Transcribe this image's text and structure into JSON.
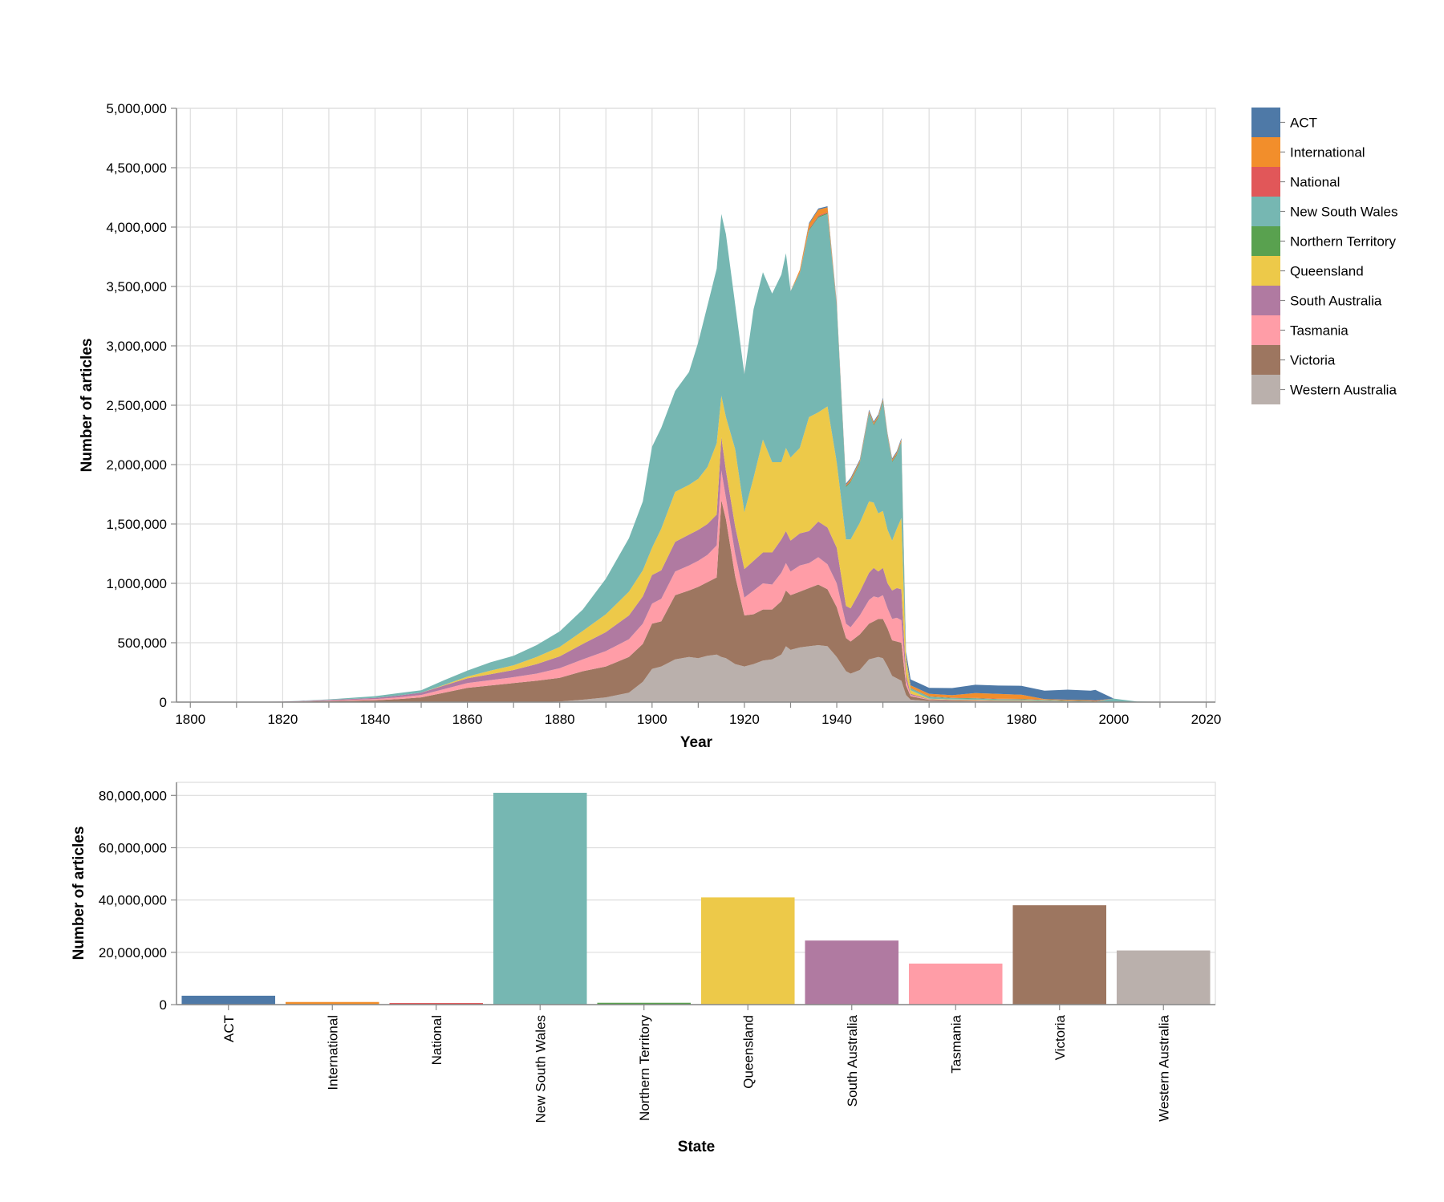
{
  "chart_data": [
    {
      "type": "area",
      "stacked": true,
      "xlabel": "Year",
      "ylabel": "Number of articles",
      "xlim": [
        1797,
        2022
      ],
      "ylim": [
        0,
        5000000
      ],
      "x_ticks": [
        1800,
        1820,
        1840,
        1860,
        1880,
        1900,
        1920,
        1940,
        1960,
        1980,
        2000,
        2020
      ],
      "x_tick_labels": [
        "1800",
        "1820",
        "1840",
        "1860",
        "1880",
        "1900",
        "1920",
        "1940",
        "1960",
        "1980",
        "2000",
        "2020"
      ],
      "y_ticks": [
        0,
        500000,
        1000000,
        1500000,
        2000000,
        2500000,
        3000000,
        3500000,
        4000000,
        4500000,
        5000000
      ],
      "y_tick_labels": [
        "0",
        "500,000",
        "1,000,000",
        "1,500,000",
        "2,000,000",
        "2,500,000",
        "3,000,000",
        "3,500,000",
        "4,000,000",
        "4,500,000",
        "5,000,000"
      ],
      "grid": true,
      "legend_position": "right",
      "x": [
        1803,
        1820,
        1830,
        1840,
        1845,
        1850,
        1855,
        1860,
        1865,
        1870,
        1875,
        1880,
        1885,
        1890,
        1895,
        1898,
        1900,
        1902,
        1905,
        1908,
        1910,
        1912,
        1914,
        1915,
        1916,
        1918,
        1920,
        1922,
        1924,
        1926,
        1928,
        1929,
        1930,
        1932,
        1934,
        1936,
        1938,
        1940,
        1942,
        1943,
        1945,
        1947,
        1948,
        1949,
        1950,
        1951,
        1952,
        1953,
        1954,
        1955,
        1956,
        1960,
        1965,
        1970,
        1975,
        1980,
        1985,
        1990,
        1995,
        1996,
        2000,
        2005,
        2010,
        2015,
        2020
      ],
      "series": [
        {
          "name": "Western Australia",
          "color": "#bab0ac",
          "values": [
            0,
            0,
            0,
            0,
            0,
            0,
            0,
            0,
            0,
            0,
            0,
            5000,
            20000,
            40000,
            80000,
            170000,
            280000,
            300000,
            360000,
            380000,
            370000,
            390000,
            400000,
            380000,
            370000,
            320000,
            300000,
            320000,
            350000,
            360000,
            400000,
            470000,
            440000,
            460000,
            470000,
            480000,
            470000,
            380000,
            260000,
            240000,
            270000,
            360000,
            370000,
            380000,
            370000,
            300000,
            220000,
            200000,
            180000,
            60000,
            20000,
            8000,
            6000,
            6000,
            5000,
            5000,
            3000,
            2000,
            1000,
            500,
            0,
            0,
            0,
            0,
            0
          ]
        },
        {
          "name": "Victoria",
          "color": "#9d7660",
          "values": [
            0,
            2000,
            8000,
            15000,
            25000,
            40000,
            80000,
            120000,
            140000,
            160000,
            180000,
            200000,
            240000,
            260000,
            300000,
            320000,
            380000,
            380000,
            540000,
            560000,
            600000,
            620000,
            650000,
            1320000,
            1170000,
            740000,
            430000,
            420000,
            430000,
            420000,
            450000,
            470000,
            460000,
            470000,
            490000,
            510000,
            480000,
            420000,
            280000,
            270000,
            300000,
            300000,
            310000,
            320000,
            330000,
            320000,
            300000,
            310000,
            320000,
            80000,
            30000,
            10000,
            8000,
            6000,
            5000,
            5000,
            3000,
            2000,
            1000,
            0,
            0,
            0,
            0,
            0,
            0
          ]
        },
        {
          "name": "Tasmania",
          "color": "#ff9da7",
          "values": [
            0,
            1000,
            5000,
            10000,
            15000,
            20000,
            30000,
            40000,
            45000,
            50000,
            60000,
            80000,
            100000,
            130000,
            150000,
            170000,
            170000,
            190000,
            200000,
            210000,
            220000,
            230000,
            270000,
            250000,
            180000,
            190000,
            150000,
            200000,
            220000,
            210000,
            240000,
            230000,
            200000,
            220000,
            210000,
            230000,
            210000,
            200000,
            120000,
            120000,
            160000,
            200000,
            210000,
            180000,
            200000,
            170000,
            180000,
            200000,
            190000,
            40000,
            10000,
            3000,
            2000,
            2000,
            1000,
            1000,
            1000,
            0,
            0,
            0,
            0,
            0,
            0,
            0,
            0
          ]
        },
        {
          "name": "South Australia",
          "color": "#b07aa1",
          "values": [
            0,
            1000,
            5000,
            10000,
            15000,
            20000,
            30000,
            40000,
            50000,
            60000,
            80000,
            100000,
            130000,
            160000,
            200000,
            230000,
            240000,
            240000,
            250000,
            260000,
            260000,
            260000,
            260000,
            280000,
            230000,
            230000,
            240000,
            250000,
            260000,
            270000,
            280000,
            270000,
            260000,
            270000,
            270000,
            300000,
            310000,
            300000,
            150000,
            160000,
            200000,
            230000,
            240000,
            220000,
            230000,
            210000,
            240000,
            250000,
            260000,
            50000,
            10000,
            3000,
            2000,
            2000,
            1000,
            1000,
            1000,
            0,
            0,
            0,
            0,
            0,
            0,
            0,
            0
          ]
        },
        {
          "name": "Queensland",
          "color": "#edc949",
          "values": [
            0,
            0,
            0,
            0,
            0,
            0,
            5000,
            15000,
            30000,
            40000,
            60000,
            80000,
            110000,
            150000,
            200000,
            220000,
            230000,
            350000,
            420000,
            420000,
            430000,
            480000,
            600000,
            350000,
            450000,
            650000,
            480000,
            700000,
            950000,
            760000,
            650000,
            700000,
            700000,
            720000,
            960000,
            920000,
            1020000,
            720000,
            560000,
            580000,
            580000,
            600000,
            550000,
            490000,
            480000,
            450000,
            420000,
            500000,
            600000,
            110000,
            30000,
            5000,
            4000,
            4000,
            3000,
            3000,
            2000,
            1000,
            0,
            0,
            0,
            0,
            0,
            0,
            0
          ]
        },
        {
          "name": "New South Wales",
          "color": "#76b7b2",
          "values": [
            0,
            0,
            5000,
            15000,
            20000,
            20000,
            40000,
            50000,
            70000,
            80000,
            100000,
            130000,
            180000,
            300000,
            450000,
            580000,
            850000,
            850000,
            850000,
            950000,
            1150000,
            1360000,
            1470000,
            1530000,
            1540000,
            1220000,
            1160000,
            1420000,
            1410000,
            1420000,
            1580000,
            1640000,
            1400000,
            1470000,
            1570000,
            1640000,
            1620000,
            1310000,
            440000,
            480000,
            500000,
            740000,
            650000,
            800000,
            920000,
            780000,
            660000,
            620000,
            640000,
            20000,
            15000,
            15000,
            10000,
            10000,
            8000,
            6000,
            5000,
            4000,
            3000,
            2000,
            30000,
            5000,
            3000,
            1000,
            0
          ]
        },
        {
          "name": "Northern Territory",
          "color": "#59a14f",
          "values": [
            0,
            0,
            0,
            0,
            0,
            0,
            0,
            0,
            0,
            0,
            0,
            0,
            0,
            0,
            0,
            0,
            0,
            0,
            0,
            0,
            0,
            0,
            0,
            0,
            0,
            0,
            0,
            0,
            0,
            0,
            0,
            0,
            0,
            5000,
            8000,
            8000,
            8000,
            8000,
            8000,
            8000,
            8000,
            8000,
            8000,
            8000,
            8000,
            8000,
            8000,
            8000,
            8000,
            3000,
            3000,
            3000,
            3000,
            3000,
            3000,
            3000,
            3000,
            3000,
            3000,
            3000,
            0,
            0,
            0,
            0,
            0
          ]
        },
        {
          "name": "National",
          "color": "#e15759",
          "values": [
            0,
            0,
            0,
            0,
            0,
            0,
            0,
            0,
            0,
            0,
            0,
            0,
            0,
            0,
            0,
            0,
            0,
            0,
            0,
            0,
            0,
            0,
            0,
            0,
            0,
            0,
            0,
            0,
            0,
            0,
            0,
            0,
            0,
            5000,
            8000,
            8000,
            8000,
            8000,
            8000,
            5000,
            5000,
            5000,
            5000,
            5000,
            5000,
            5000,
            5000,
            5000,
            5000,
            3000,
            3000,
            3000,
            3000,
            3000,
            3000,
            3000,
            3000,
            3000,
            3000,
            3000,
            0,
            0,
            0,
            0,
            0
          ]
        },
        {
          "name": "International",
          "color": "#f28e2b",
          "values": [
            0,
            0,
            0,
            0,
            0,
            0,
            0,
            0,
            0,
            0,
            0,
            0,
            0,
            0,
            0,
            0,
            0,
            0,
            0,
            0,
            0,
            0,
            0,
            0,
            0,
            0,
            0,
            0,
            0,
            0,
            0,
            0,
            0,
            20000,
            40000,
            50000,
            40000,
            10000,
            5000,
            15000,
            10000,
            10000,
            10000,
            10000,
            10000,
            10000,
            10000,
            10000,
            10000,
            20000,
            20000,
            20000,
            20000,
            40000,
            40000,
            35000,
            5000,
            5000,
            5000,
            5000,
            0,
            0,
            0,
            0,
            0
          ]
        },
        {
          "name": "ACT",
          "color": "#4e79a7",
          "values": [
            0,
            0,
            0,
            0,
            0,
            0,
            0,
            0,
            0,
            0,
            0,
            0,
            0,
            0,
            0,
            0,
            0,
            0,
            0,
            0,
            0,
            0,
            0,
            0,
            0,
            0,
            0,
            0,
            0,
            0,
            0,
            0,
            0,
            0,
            10000,
            10000,
            10000,
            10000,
            10000,
            10000,
            10000,
            10000,
            10000,
            10000,
            10000,
            10000,
            10000,
            10000,
            10000,
            40000,
            50000,
            50000,
            60000,
            70000,
            70000,
            75000,
            70000,
            85000,
            80000,
            90000,
            0,
            0,
            0,
            0,
            0
          ]
        }
      ]
    },
    {
      "type": "bar",
      "xlabel": "State",
      "ylabel": "Number of articles",
      "ylim": [
        0,
        85000000
      ],
      "y_ticks": [
        0,
        20000000,
        40000000,
        60000000,
        80000000
      ],
      "y_tick_labels": [
        "0",
        "20,000,000",
        "40,000,000",
        "60,000,000",
        "80,000,000"
      ],
      "grid": true,
      "categories": [
        "ACT",
        "International",
        "National",
        "New South Wales",
        "Northern Territory",
        "Queensland",
        "South Australia",
        "Tasmania",
        "Victoria",
        "Western Australia"
      ],
      "values": [
        3400000,
        1000000,
        600000,
        81000000,
        700000,
        41000000,
        24500000,
        15700000,
        38000000,
        20700000
      ],
      "colors": [
        "#4e79a7",
        "#f28e2b",
        "#e15759",
        "#76b7b2",
        "#59a14f",
        "#edc949",
        "#b07aa1",
        "#ff9da7",
        "#9d7660",
        "#bab0ac"
      ]
    }
  ],
  "legend": {
    "items": [
      {
        "label": "ACT",
        "color": "#4e79a7"
      },
      {
        "label": "International",
        "color": "#f28e2b"
      },
      {
        "label": "National",
        "color": "#e15759"
      },
      {
        "label": "New South Wales",
        "color": "#76b7b2"
      },
      {
        "label": "Northern Territory",
        "color": "#59a14f"
      },
      {
        "label": "Queensland",
        "color": "#edc949"
      },
      {
        "label": "South Australia",
        "color": "#b07aa1"
      },
      {
        "label": "Tasmania",
        "color": "#ff9da7"
      },
      {
        "label": "Victoria",
        "color": "#9d7660"
      },
      {
        "label": "Western Australia",
        "color": "#bab0ac"
      }
    ]
  }
}
